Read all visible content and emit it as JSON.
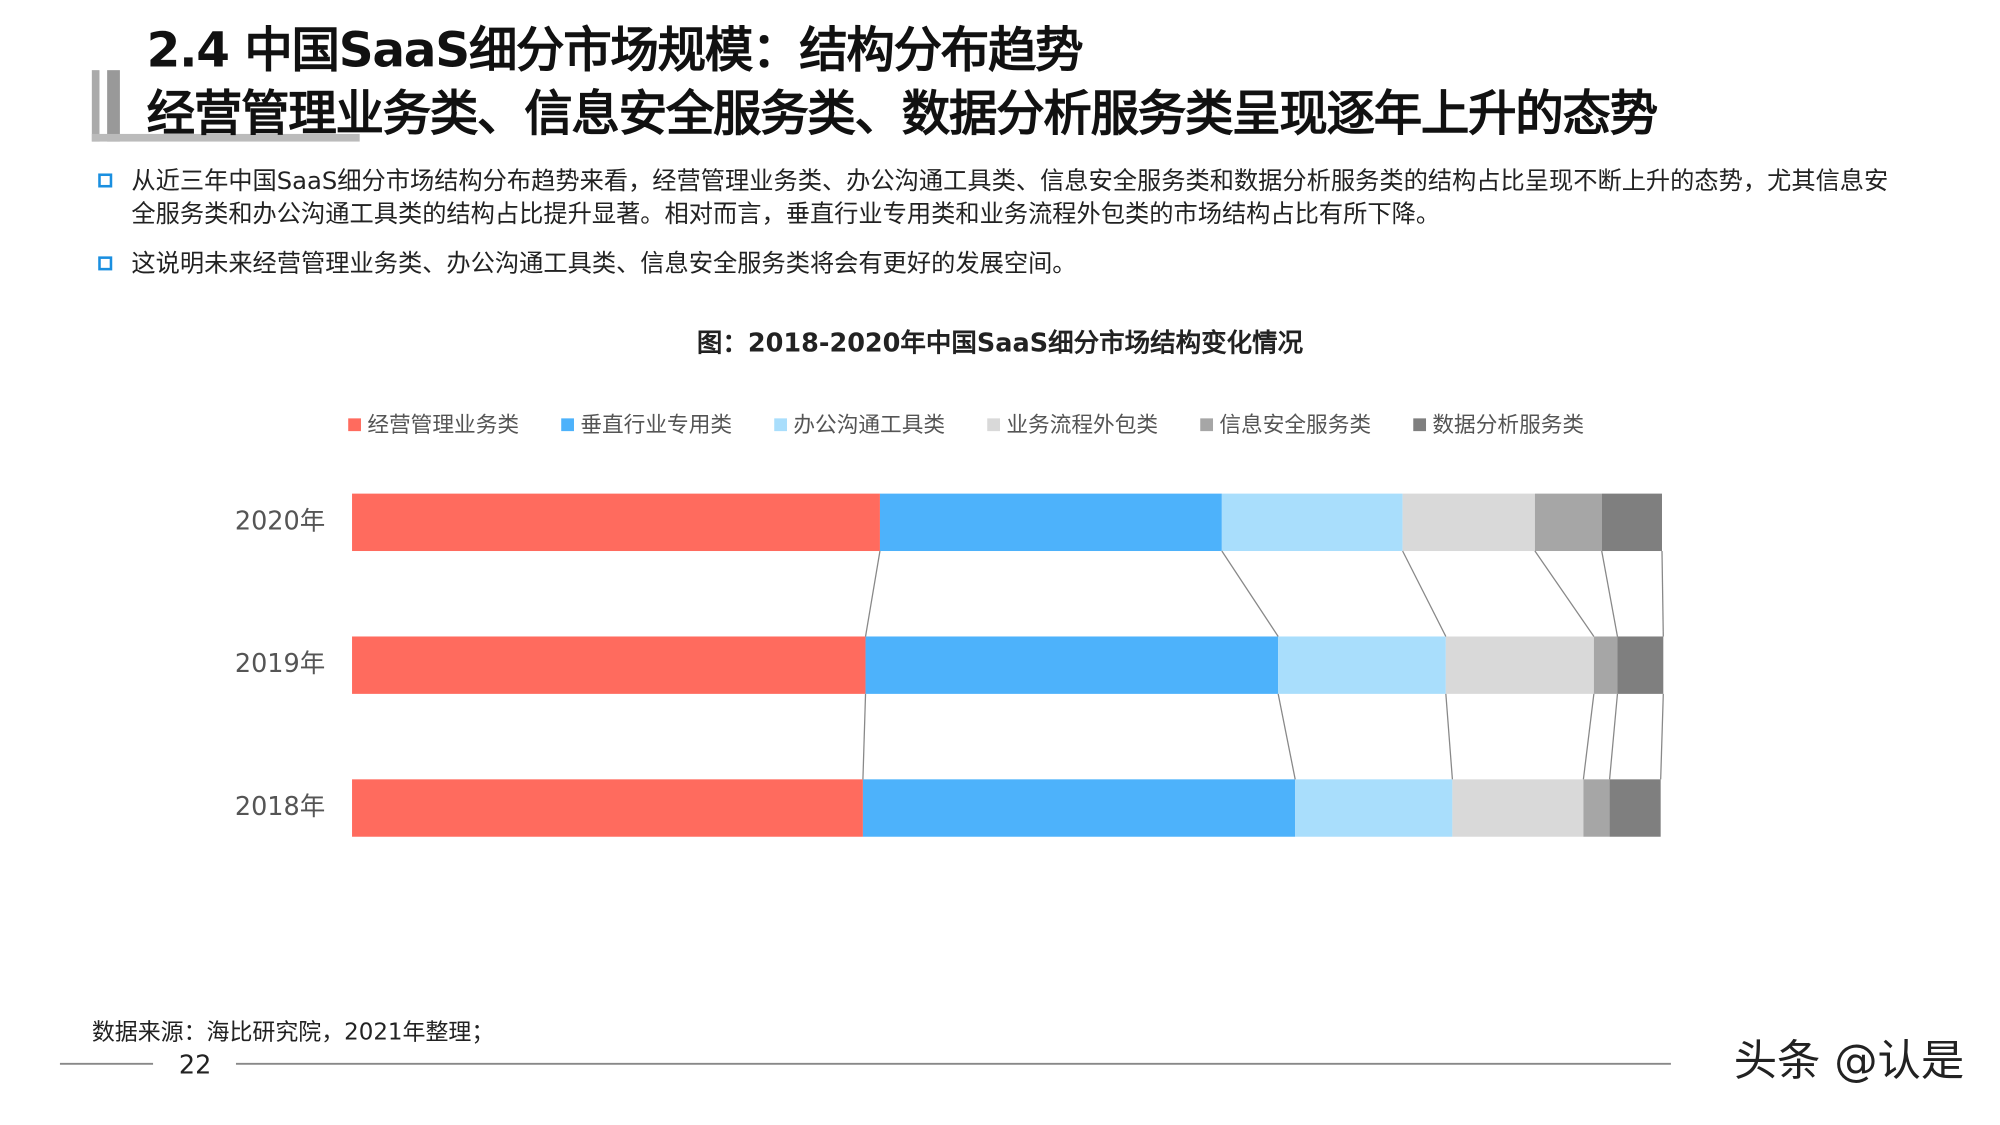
{
  "header": {
    "title_line1": "2.4 中国SaaS细分市场规模：结构分布趋势",
    "title_line2": "经营管理业务类、信息安全服务类、数据分析服务类呈现逐年上升的态势"
  },
  "bullets": [
    "从近三年中国SaaS细分市场结构分布趋势来看，经营管理业务类、办公沟通工具类、信息安全服务类和数据分析服务类的结构占比呈现不断上升的态势，尤其信息安全服务类和办公沟通工具类的结构占比提升显著。相对而言，垂直行业专用类和业务流程外包类的市场结构占比有所下降。",
    "这说明未来经营管理业务类、办公沟通工具类、信息安全服务类将会有更好的发展空间。"
  ],
  "chart_data": {
    "type": "stacked-bar-h",
    "title": "图：2018-2020年中国SaaS细分市场结构变化情况",
    "categories": [
      "2020年",
      "2019年",
      "2018年"
    ],
    "series": [
      {
        "name": "经营管理业务类",
        "color": "#ff6b5e",
        "values": [
          40.3,
          39.2,
          39.0
        ]
      },
      {
        "name": "垂直行业专用类",
        "color": "#4db2fb",
        "values": [
          26.1,
          31.5,
          33.0
        ]
      },
      {
        "name": "办公沟通工具类",
        "color": "#a9defc",
        "values": [
          13.8,
          12.8,
          12.0
        ]
      },
      {
        "name": "业务流程外包类",
        "color": "#d9d9d9",
        "values": [
          10.1,
          11.3,
          10.0
        ]
      },
      {
        "name": "信息安全服务类",
        "color": "#a6a6a6",
        "values": [
          5.1,
          1.8,
          2.0
        ]
      },
      {
        "name": "数据分析服务类",
        "color": "#7f7f7f",
        "values": [
          4.6,
          3.5,
          3.9
        ]
      }
    ],
    "xlim": [
      0,
      100
    ]
  },
  "footer": {
    "source": "数据来源：海比研究院，2021年整理；",
    "page": "22",
    "credit": "头条 @认是"
  }
}
